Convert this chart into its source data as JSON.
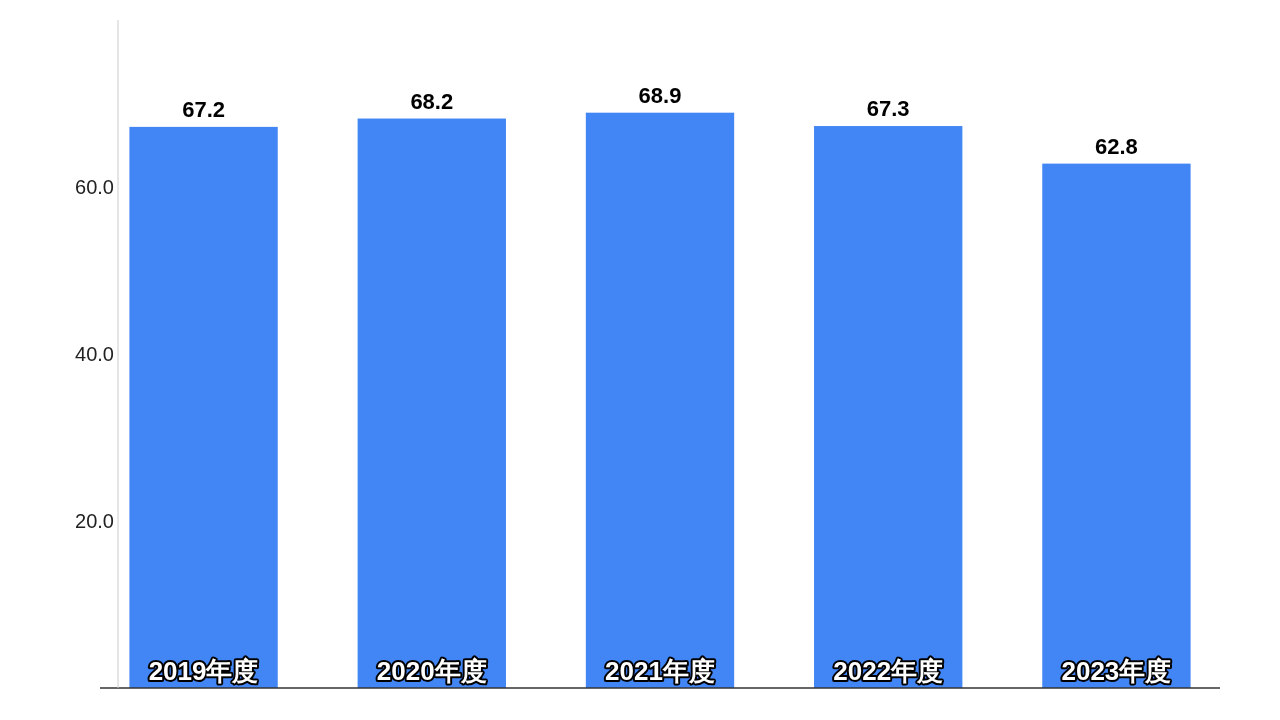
{
  "chart_data": {
    "type": "bar",
    "categories": [
      "2019年度",
      "2020年度",
      "2021年度",
      "2022年度",
      "2023年度"
    ],
    "values": [
      67.2,
      68.2,
      68.9,
      67.3,
      62.8
    ],
    "color": "#4285f4",
    "ylim": [
      0,
      80
    ],
    "yticks": [
      {
        "value": 20,
        "label": "20.0"
      },
      {
        "value": 40,
        "label": "40.0"
      },
      {
        "value": 60,
        "label": "60.0"
      }
    ],
    "data_labels": true,
    "grid": false
  }
}
